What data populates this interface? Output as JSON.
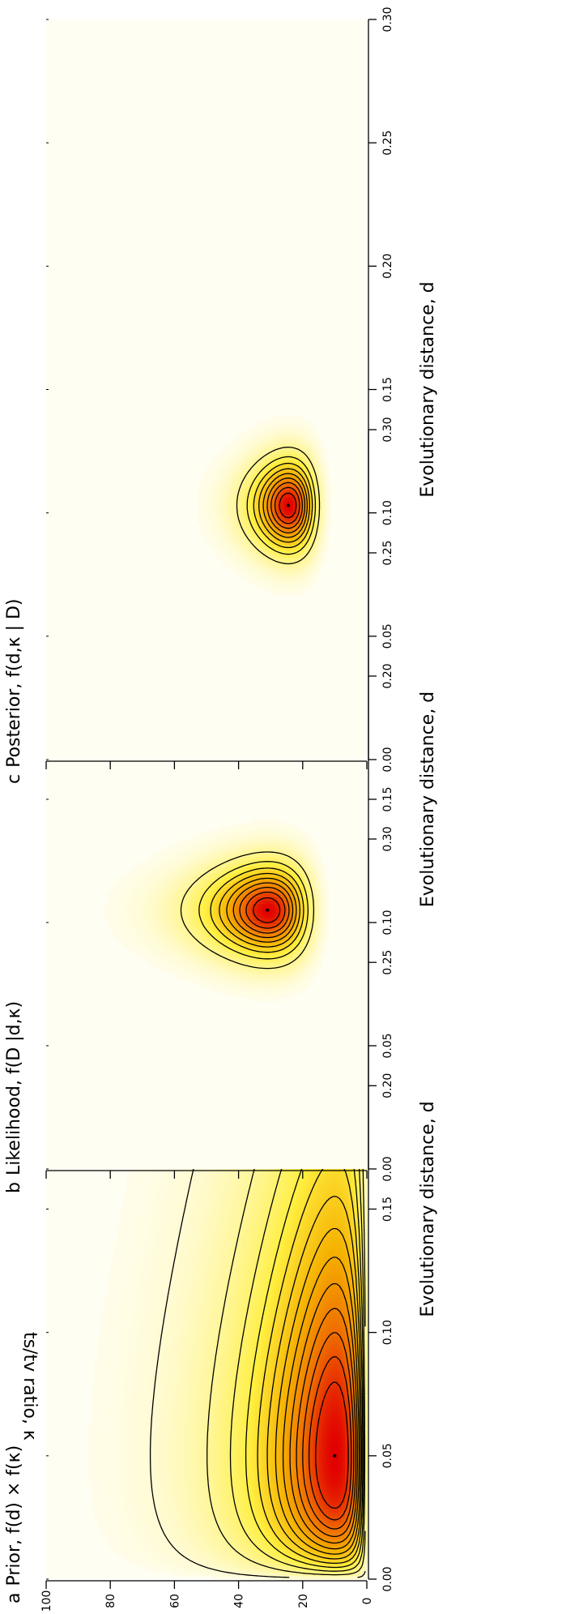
{
  "chart_data": {
    "type": "contour",
    "orientation": "rotated 90 degrees counter-clockwise",
    "shared": {
      "xlabel": "Evolutionary distance, d",
      "ylabel": "ts/tv ratio, κ",
      "xlim": [
        0,
        0.3
      ],
      "ylim": [
        0,
        100
      ],
      "x_ticks": [
        "0.00",
        "0.05",
        "0.10",
        "0.15",
        "0.20",
        "0.25",
        "0.30"
      ],
      "y_ticks": [
        "0",
        "20",
        "40",
        "60",
        "80",
        "100"
      ],
      "color_scale": [
        "#fffef2",
        "#fff8b0",
        "#ffef40",
        "#f5b000",
        "#ee6a00",
        "#e10000"
      ]
    },
    "panels": [
      {
        "id": "a",
        "letter": "a",
        "title": "Prior, f(d) × f(κ)",
        "mode": {
          "d": 0.05,
          "kappa": 10
        },
        "contour_levels": 13,
        "show_y_tick_labels": true
      },
      {
        "id": "b",
        "letter": "b",
        "title": "Likelihood, f(D |d,κ)",
        "mode": {
          "d": 0.105,
          "kappa": 31
        },
        "contour_levels": 9,
        "show_y_tick_labels": false
      },
      {
        "id": "c",
        "letter": "c",
        "title": "Posterior, f(d,κ | D)",
        "mode": {
          "d": 0.103,
          "kappa": 24.5
        },
        "contour_levels": 9,
        "show_y_tick_labels": false
      }
    ]
  }
}
